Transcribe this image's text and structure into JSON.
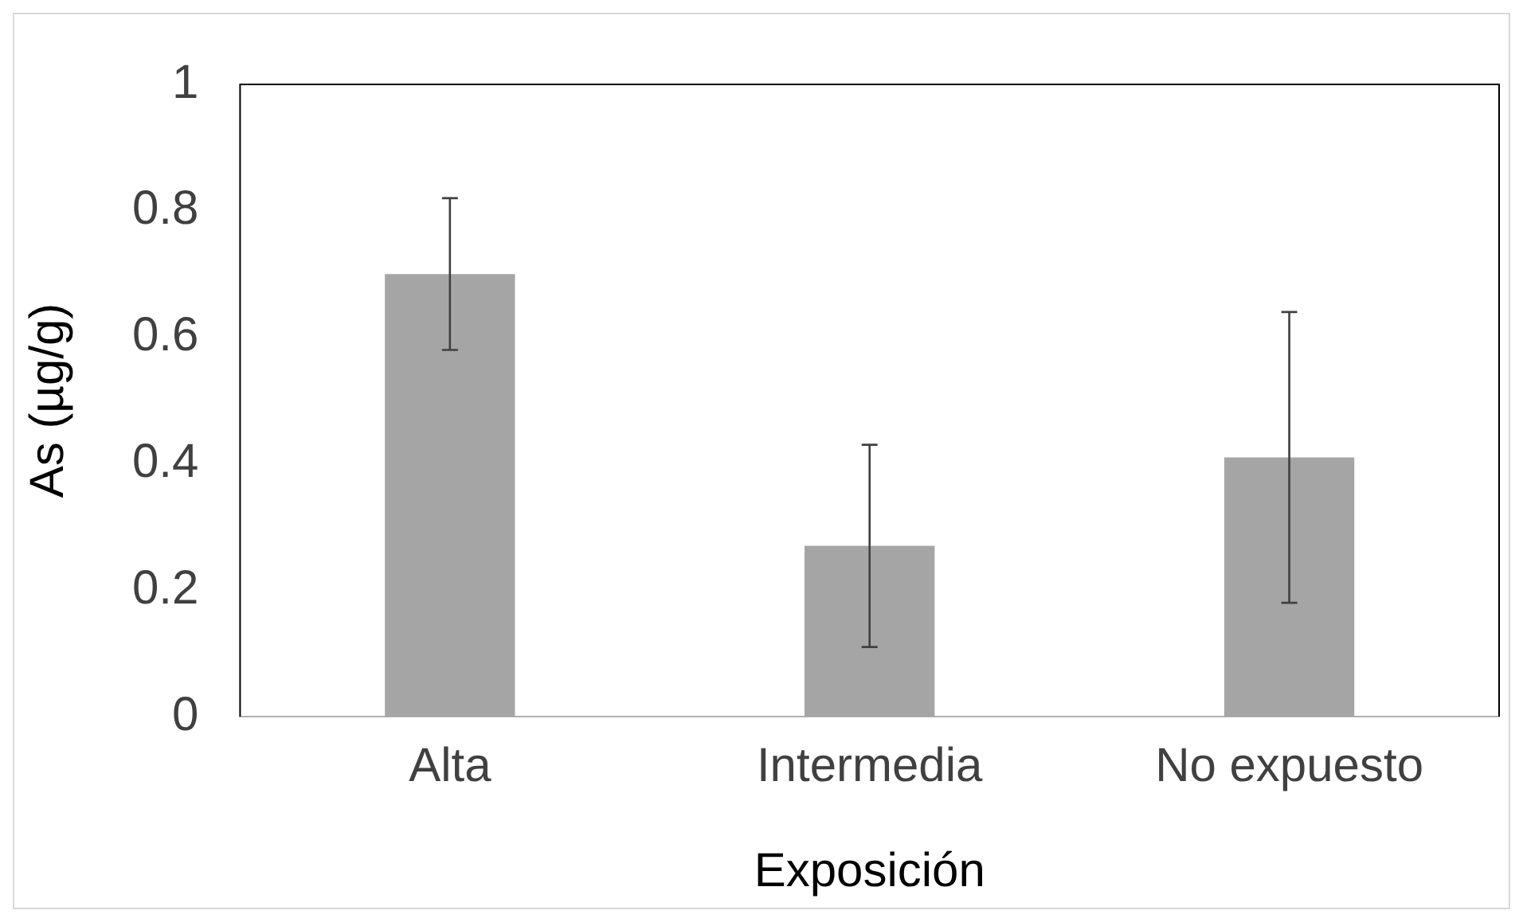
{
  "chart_data": {
    "type": "bar",
    "xlabel": "Exposición",
    "ylabel": "As (µg/g)",
    "categories": [
      "Alta",
      "Intermedia",
      "No expuesto"
    ],
    "values": [
      0.7,
      0.27,
      0.41
    ],
    "errors": [
      0.12,
      0.16,
      0.23
    ],
    "color": "#a5a5a5",
    "ylim": [
      0,
      1
    ],
    "yticks": [
      0,
      0.2,
      0.4,
      0.6,
      0.8,
      1
    ],
    "grid": false,
    "legend": false
  }
}
